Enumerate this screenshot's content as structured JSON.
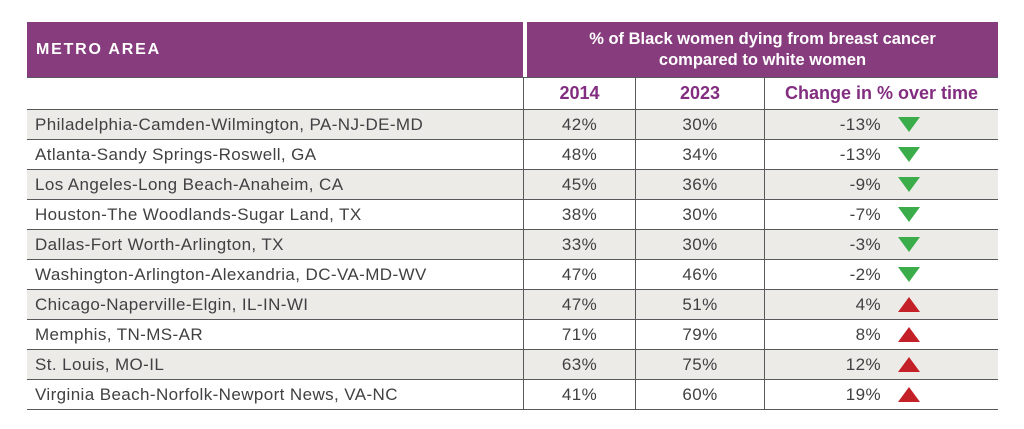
{
  "colors": {
    "header-purple": "#873c7e",
    "subheader-purple": "#822d80",
    "body-text": "#414042",
    "row-shade": "#edebe8",
    "border": "#58595b",
    "decrease-green": "#3aad4a",
    "increase-red": "#c32127"
  },
  "table": {
    "header": {
      "metro_area_label": "METRO AREA",
      "data_header_line1": "% of Black women dying from breast cancer",
      "data_header_line2": "compared to white women"
    },
    "columns": {
      "col_2014": "2014",
      "col_2023": "2023",
      "col_change": "Change in % over time"
    },
    "rows": [
      {
        "metro": "Philadelphia-Camden-Wilmington, PA-NJ-DE-MD",
        "y2014": "42%",
        "y2023": "30%",
        "change": "-13%",
        "direction": "down"
      },
      {
        "metro": "Atlanta-Sandy Springs-Roswell, GA",
        "y2014": "48%",
        "y2023": "34%",
        "change": "-13%",
        "direction": "down"
      },
      {
        "metro": "Los Angeles-Long Beach-Anaheim, CA",
        "y2014": "45%",
        "y2023": "36%",
        "change": "-9%",
        "direction": "down"
      },
      {
        "metro": "Houston-The Woodlands-Sugar Land, TX",
        "y2014": "38%",
        "y2023": "30%",
        "change": "-7%",
        "direction": "down"
      },
      {
        "metro": "Dallas-Fort Worth-Arlington, TX",
        "y2014": "33%",
        "y2023": "30%",
        "change": "-3%",
        "direction": "down"
      },
      {
        "metro": "Washington-Arlington-Alexandria, DC-VA-MD-WV",
        "y2014": "47%",
        "y2023": "46%",
        "change": "-2%",
        "direction": "down"
      },
      {
        "metro": "Chicago-Naperville-Elgin, IL-IN-WI",
        "y2014": "47%",
        "y2023": "51%",
        "change": "4%",
        "direction": "up"
      },
      {
        "metro": "Memphis, TN-MS-AR",
        "y2014": "71%",
        "y2023": "79%",
        "change": "8%",
        "direction": "up"
      },
      {
        "metro": "St. Louis, MO-IL",
        "y2014": "63%",
        "y2023": "75%",
        "change": "12%",
        "direction": "up"
      },
      {
        "metro": "Virginia Beach-Norfolk-Newport News, VA-NC",
        "y2014": "41%",
        "y2023": "60%",
        "change": "19%",
        "direction": "up"
      }
    ]
  },
  "chart_data": {
    "type": "table",
    "title": "% of Black women dying from breast cancer compared to white women",
    "columns": [
      "METRO AREA",
      "2014",
      "2023",
      "Change in % over time"
    ],
    "rows": [
      [
        "Philadelphia-Camden-Wilmington, PA-NJ-DE-MD",
        42,
        30,
        -13
      ],
      [
        "Atlanta-Sandy Springs-Roswell, GA",
        48,
        34,
        -13
      ],
      [
        "Los Angeles-Long Beach-Anaheim, CA",
        45,
        36,
        -9
      ],
      [
        "Houston-The Woodlands-Sugar Land, TX",
        38,
        30,
        -7
      ],
      [
        "Dallas-Fort Worth-Arlington, TX",
        33,
        30,
        -3
      ],
      [
        "Washington-Arlington-Alexandria, DC-VA-MD-WV",
        47,
        46,
        -2
      ],
      [
        "Chicago-Naperville-Elgin, IL-IN-WI",
        47,
        51,
        4
      ],
      [
        "Memphis, TN-MS-AR",
        71,
        79,
        8
      ],
      [
        "St. Louis, MO-IL",
        63,
        75,
        12
      ],
      [
        "Virginia Beach-Norfolk-Newport News, VA-NC",
        41,
        60,
        19
      ]
    ],
    "units": "percent",
    "trend_icons": {
      "negative": "green-down-triangle",
      "positive": "red-up-triangle"
    }
  }
}
